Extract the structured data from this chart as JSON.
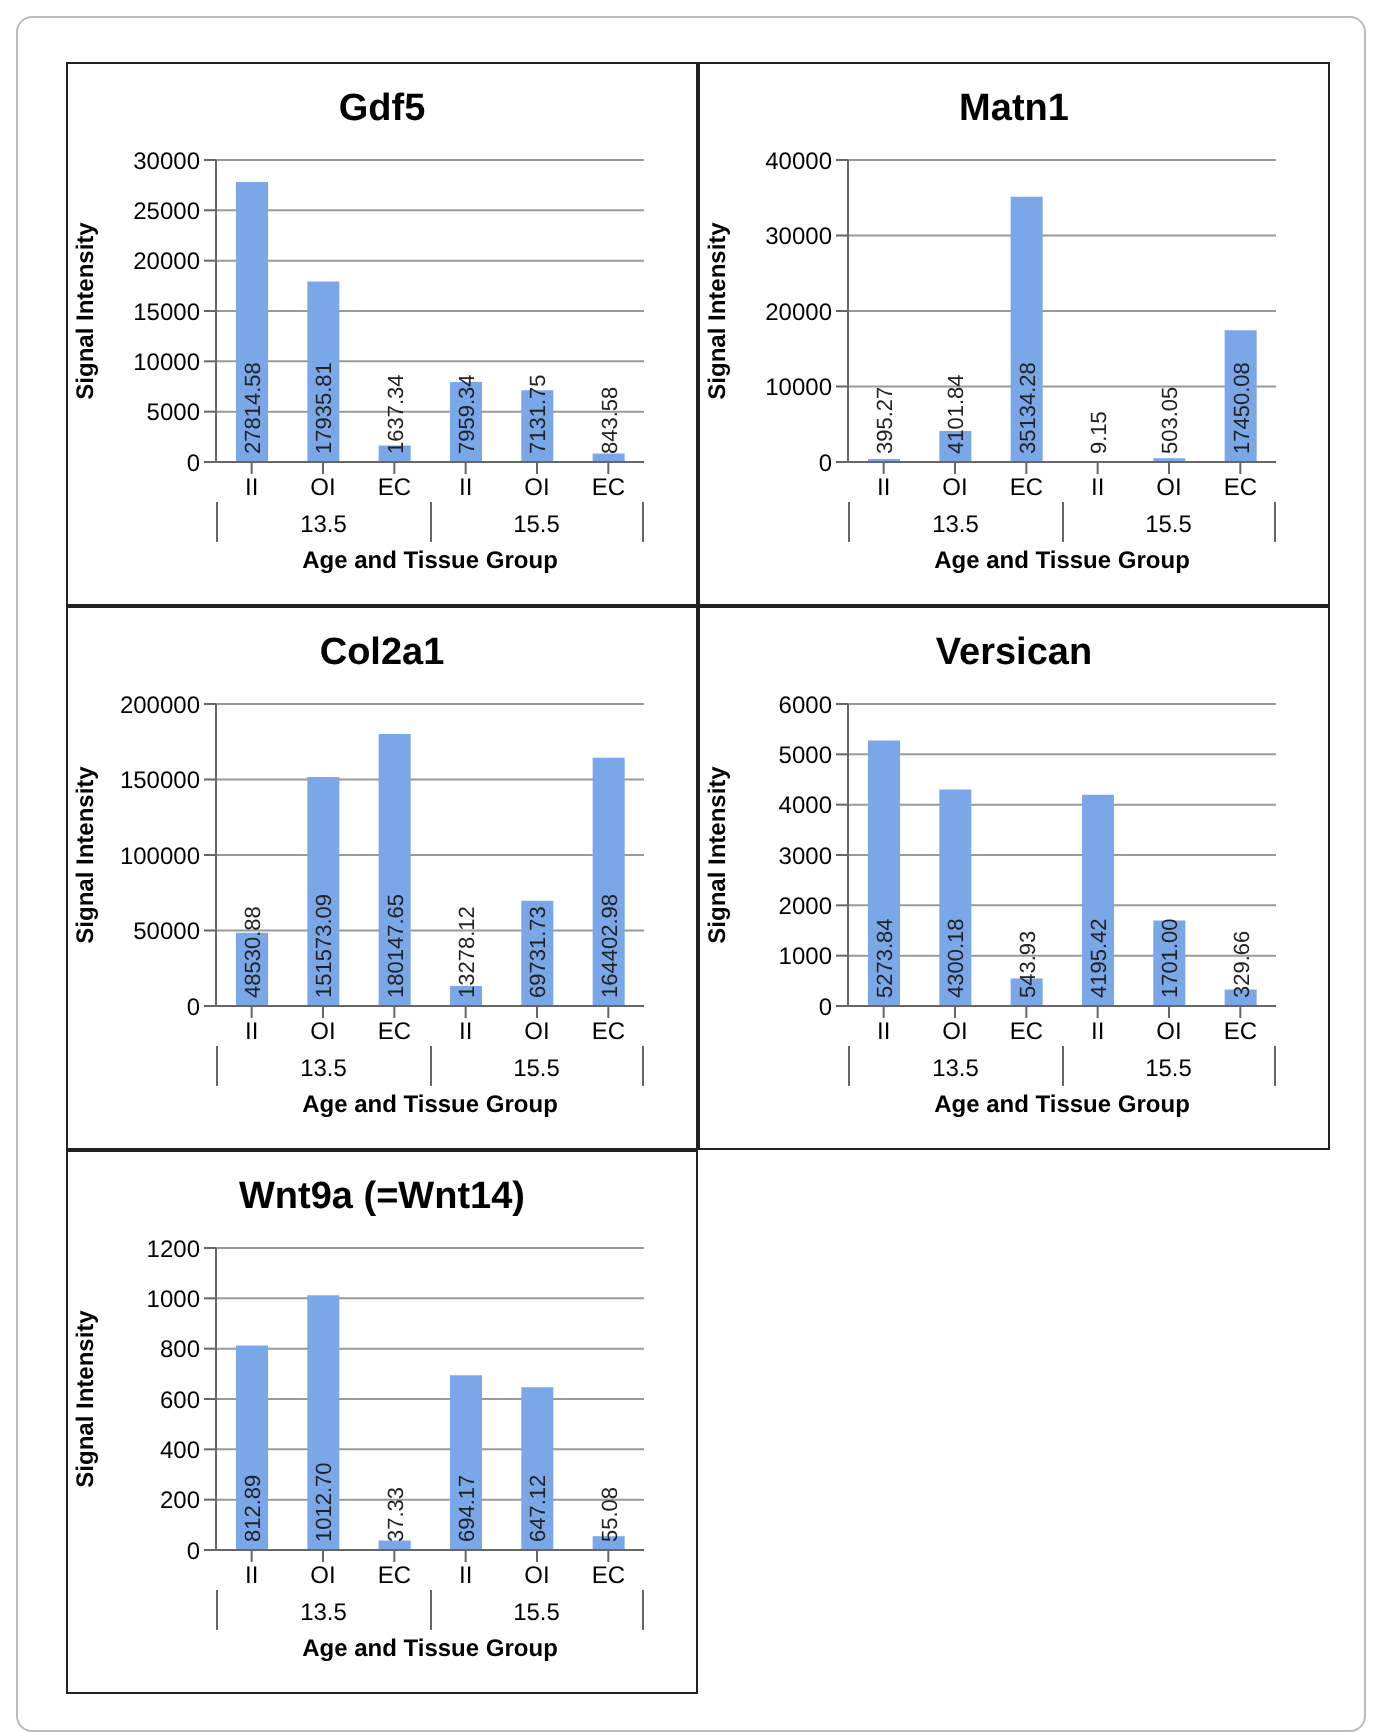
{
  "chart_data": [
    {
      "type": "bar",
      "title": "Gdf5",
      "ylabel": "Signal Intensity",
      "xlabel": "Age and Tissue Group",
      "categories": [
        "II",
        "OI",
        "EC",
        "II",
        "OI",
        "EC"
      ],
      "annotations": [
        "13.5",
        "15.5"
      ],
      "values": [
        27814.58,
        17935.81,
        1637.34,
        7959.34,
        7131.75,
        843.58
      ],
      "value_labels": [
        "27814.58",
        "17935.81",
        "1637.34",
        "7959.34",
        "7131.75",
        "843.58"
      ],
      "color": "#7aa7e8",
      "ylim": [
        0,
        30000
      ],
      "yticks": [
        0,
        5000,
        10000,
        15000,
        20000,
        25000,
        30000
      ],
      "grid": "y",
      "legend": false
    },
    {
      "type": "bar",
      "title": "Matn1",
      "ylabel": "Signal Intensity",
      "xlabel": "Age and Tissue Group",
      "categories": [
        "II",
        "OI",
        "EC",
        "II",
        "OI",
        "EC"
      ],
      "annotations": [
        "13.5",
        "15.5"
      ],
      "values": [
        395.27,
        4101.84,
        35134.28,
        9.15,
        503.05,
        17450.08
      ],
      "value_labels": [
        "395.27",
        "4101.84",
        "35134.28",
        "9.15",
        "503.05",
        "17450.08"
      ],
      "color": "#7aa7e8",
      "ylim": [
        0,
        40000
      ],
      "yticks": [
        0,
        10000,
        20000,
        30000,
        40000
      ],
      "grid": "y",
      "legend": false
    },
    {
      "type": "bar",
      "title": "Col2a1",
      "ylabel": "Signal Intensity",
      "xlabel": "Age and Tissue Group",
      "categories": [
        "II",
        "OI",
        "EC",
        "II",
        "OI",
        "EC"
      ],
      "annotations": [
        "13.5",
        "15.5"
      ],
      "values": [
        48530.88,
        151573.09,
        180147.65,
        13278.12,
        69731.73,
        164402.98
      ],
      "value_labels": [
        "48530.88",
        "151573.09",
        "180147.65",
        "13278.12",
        "69731.73",
        "164402.98"
      ],
      "color": "#7aa7e8",
      "ylim": [
        0,
        200000
      ],
      "yticks": [
        0,
        50000,
        100000,
        150000,
        200000
      ],
      "grid": "y",
      "legend": false
    },
    {
      "type": "bar",
      "title": "Versican",
      "ylabel": "Signal Intensity",
      "xlabel": "Age and Tissue Group",
      "categories": [
        "II",
        "OI",
        "EC",
        "II",
        "OI",
        "EC"
      ],
      "annotations": [
        "13.5",
        "15.5"
      ],
      "values": [
        5273.84,
        4300.18,
        543.93,
        4195.42,
        1701.0,
        329.66
      ],
      "value_labels": [
        "5273.84",
        "4300.18",
        "543.93",
        "4195.42",
        "1701.00",
        "329.66"
      ],
      "color": "#7aa7e8",
      "ylim": [
        0,
        6000
      ],
      "yticks": [
        0,
        1000,
        2000,
        3000,
        4000,
        5000,
        6000
      ],
      "grid": "y",
      "legend": false
    },
    {
      "type": "bar",
      "title": "Wnt9a (=Wnt14)",
      "ylabel": "Signal Intensity",
      "xlabel": "Age and Tissue Group",
      "categories": [
        "II",
        "OI",
        "EC",
        "II",
        "OI",
        "EC"
      ],
      "annotations": [
        "13.5",
        "15.5"
      ],
      "values": [
        812.89,
        1012.7,
        37.33,
        694.17,
        647.12,
        55.08
      ],
      "value_labels": [
        "812.89",
        "1012.70",
        "37.33",
        "694.17",
        "647.12",
        "55.08"
      ],
      "color": "#7aa7e8",
      "ylim": [
        0,
        1200
      ],
      "yticks": [
        0,
        200,
        400,
        600,
        800,
        1000,
        1200
      ],
      "grid": "y",
      "legend": false
    }
  ]
}
